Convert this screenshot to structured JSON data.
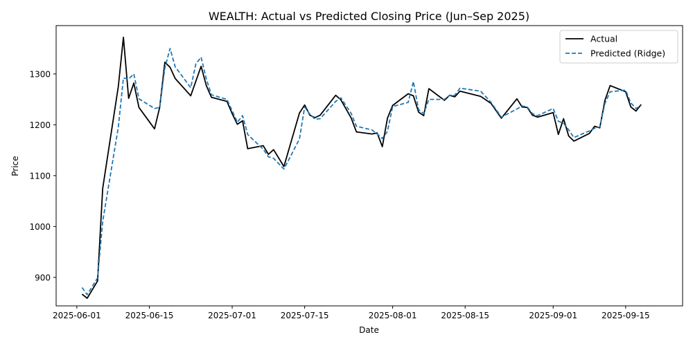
{
  "chart_data": {
    "type": "line",
    "title": "WEALTH: Actual vs Predicted Closing Price (Jun–Sep 2025)",
    "xlabel": "Date",
    "ylabel": "Price",
    "x_ticks": [
      "2025-06-01",
      "2025-06-15",
      "2025-07-01",
      "2025-07-15",
      "2025-08-01",
      "2025-08-15",
      "2025-09-01",
      "2025-09-15"
    ],
    "y_ticks": [
      900,
      1000,
      1100,
      1200,
      1300
    ],
    "xlim": [
      "2025-05-28",
      "2025-09-26"
    ],
    "ylim": [
      844,
      1395
    ],
    "grid": false,
    "legend_position": "top-right",
    "series": [
      {
        "name": "Actual",
        "color": "#000000",
        "style": "solid",
        "points": [
          [
            "2025-06-02",
            867
          ],
          [
            "2025-06-03",
            859
          ],
          [
            "2025-06-05",
            893
          ],
          [
            "2025-06-06",
            1075
          ],
          [
            "2025-06-09",
            1275
          ],
          [
            "2025-06-10",
            1372
          ],
          [
            "2025-06-11",
            1252
          ],
          [
            "2025-06-12",
            1282
          ],
          [
            "2025-06-13",
            1234
          ],
          [
            "2025-06-16",
            1192
          ],
          [
            "2025-06-17",
            1234
          ],
          [
            "2025-06-18",
            1323
          ],
          [
            "2025-06-19",
            1313
          ],
          [
            "2025-06-20",
            1291
          ],
          [
            "2025-06-23",
            1257
          ],
          [
            "2025-06-25",
            1315
          ],
          [
            "2025-06-26",
            1277
          ],
          [
            "2025-06-27",
            1254
          ],
          [
            "2025-06-30",
            1246
          ],
          [
            "2025-07-01",
            1222
          ],
          [
            "2025-07-02",
            1201
          ],
          [
            "2025-07-03",
            1208
          ],
          [
            "2025-07-04",
            1153
          ],
          [
            "2025-07-07",
            1159
          ],
          [
            "2025-07-08",
            1142
          ],
          [
            "2025-07-09",
            1151
          ],
          [
            "2025-07-11",
            1118
          ],
          [
            "2025-07-14",
            1223
          ],
          [
            "2025-07-15",
            1239
          ],
          [
            "2025-07-16",
            1219
          ],
          [
            "2025-07-17",
            1214
          ],
          [
            "2025-07-18",
            1219
          ],
          [
            "2025-07-21",
            1258
          ],
          [
            "2025-07-22",
            1249
          ],
          [
            "2025-07-24",
            1213
          ],
          [
            "2025-07-25",
            1186
          ],
          [
            "2025-07-28",
            1182
          ],
          [
            "2025-07-29",
            1184
          ],
          [
            "2025-07-30",
            1157
          ],
          [
            "2025-07-31",
            1213
          ],
          [
            "2025-08-01",
            1238
          ],
          [
            "2025-08-04",
            1261
          ],
          [
            "2025-08-05",
            1257
          ],
          [
            "2025-08-06",
            1225
          ],
          [
            "2025-08-07",
            1218
          ],
          [
            "2025-08-08",
            1271
          ],
          [
            "2025-08-11",
            1248
          ],
          [
            "2025-08-12",
            1258
          ],
          [
            "2025-08-13",
            1255
          ],
          [
            "2025-08-14",
            1266
          ],
          [
            "2025-08-18",
            1256
          ],
          [
            "2025-08-20",
            1242
          ],
          [
            "2025-08-22",
            1213
          ],
          [
            "2025-08-25",
            1251
          ],
          [
            "2025-08-26",
            1235
          ],
          [
            "2025-08-27",
            1234
          ],
          [
            "2025-08-28",
            1219
          ],
          [
            "2025-08-29",
            1215
          ],
          [
            "2025-09-01",
            1224
          ],
          [
            "2025-09-02",
            1181
          ],
          [
            "2025-09-03",
            1212
          ],
          [
            "2025-09-04",
            1178
          ],
          [
            "2025-09-05",
            1168
          ],
          [
            "2025-09-08",
            1183
          ],
          [
            "2025-09-09",
            1197
          ],
          [
            "2025-09-10",
            1194
          ],
          [
            "2025-09-11",
            1248
          ],
          [
            "2025-09-12",
            1277
          ],
          [
            "2025-09-15",
            1265
          ],
          [
            "2025-09-16",
            1235
          ],
          [
            "2025-09-17",
            1227
          ],
          [
            "2025-09-18",
            1240
          ]
        ]
      },
      {
        "name": "Predicted (Ridge)",
        "color": "#1f77b4",
        "style": "dashed",
        "points": [
          [
            "2025-06-02",
            880
          ],
          [
            "2025-06-03",
            866
          ],
          [
            "2025-06-05",
            899
          ],
          [
            "2025-06-06",
            1010
          ],
          [
            "2025-06-09",
            1195
          ],
          [
            "2025-06-10",
            1292
          ],
          [
            "2025-06-11",
            1290
          ],
          [
            "2025-06-12",
            1300
          ],
          [
            "2025-06-13",
            1251
          ],
          [
            "2025-06-16",
            1232
          ],
          [
            "2025-06-17",
            1234
          ],
          [
            "2025-06-18",
            1312
          ],
          [
            "2025-06-19",
            1350
          ],
          [
            "2025-06-20",
            1314
          ],
          [
            "2025-06-23",
            1273
          ],
          [
            "2025-06-24",
            1320
          ],
          [
            "2025-06-25",
            1333
          ],
          [
            "2025-06-26",
            1290
          ],
          [
            "2025-06-27",
            1259
          ],
          [
            "2025-06-30",
            1250
          ],
          [
            "2025-07-02",
            1205
          ],
          [
            "2025-07-03",
            1218
          ],
          [
            "2025-07-04",
            1181
          ],
          [
            "2025-07-07",
            1152
          ],
          [
            "2025-07-08",
            1137
          ],
          [
            "2025-07-09",
            1134
          ],
          [
            "2025-07-11",
            1113
          ],
          [
            "2025-07-14",
            1172
          ],
          [
            "2025-07-15",
            1235
          ],
          [
            "2025-07-16",
            1221
          ],
          [
            "2025-07-17",
            1211
          ],
          [
            "2025-07-18",
            1212
          ],
          [
            "2025-07-21",
            1246
          ],
          [
            "2025-07-22",
            1253
          ],
          [
            "2025-07-24",
            1222
          ],
          [
            "2025-07-25",
            1197
          ],
          [
            "2025-07-28",
            1190
          ],
          [
            "2025-07-29",
            1182
          ],
          [
            "2025-07-30",
            1173
          ],
          [
            "2025-07-31",
            1187
          ],
          [
            "2025-08-01",
            1236
          ],
          [
            "2025-08-04",
            1244
          ],
          [
            "2025-08-05",
            1285
          ],
          [
            "2025-08-06",
            1230
          ],
          [
            "2025-08-07",
            1222
          ],
          [
            "2025-08-08",
            1250
          ],
          [
            "2025-08-11",
            1250
          ],
          [
            "2025-08-12",
            1258
          ],
          [
            "2025-08-13",
            1258
          ],
          [
            "2025-08-14",
            1272
          ],
          [
            "2025-08-18",
            1266
          ],
          [
            "2025-08-20",
            1244
          ],
          [
            "2025-08-22",
            1215
          ],
          [
            "2025-08-25",
            1231
          ],
          [
            "2025-08-26",
            1237
          ],
          [
            "2025-08-27",
            1235
          ],
          [
            "2025-08-28",
            1222
          ],
          [
            "2025-08-29",
            1218
          ],
          [
            "2025-09-01",
            1232
          ],
          [
            "2025-09-02",
            1207
          ],
          [
            "2025-09-03",
            1203
          ],
          [
            "2025-09-04",
            1190
          ],
          [
            "2025-09-05",
            1175
          ],
          [
            "2025-09-08",
            1188
          ],
          [
            "2025-09-09",
            1193
          ],
          [
            "2025-09-10",
            1196
          ],
          [
            "2025-09-11",
            1242
          ],
          [
            "2025-09-12",
            1265
          ],
          [
            "2025-09-15",
            1268
          ],
          [
            "2025-09-16",
            1243
          ],
          [
            "2025-09-17",
            1232
          ],
          [
            "2025-09-18",
            1238
          ]
        ]
      }
    ]
  }
}
